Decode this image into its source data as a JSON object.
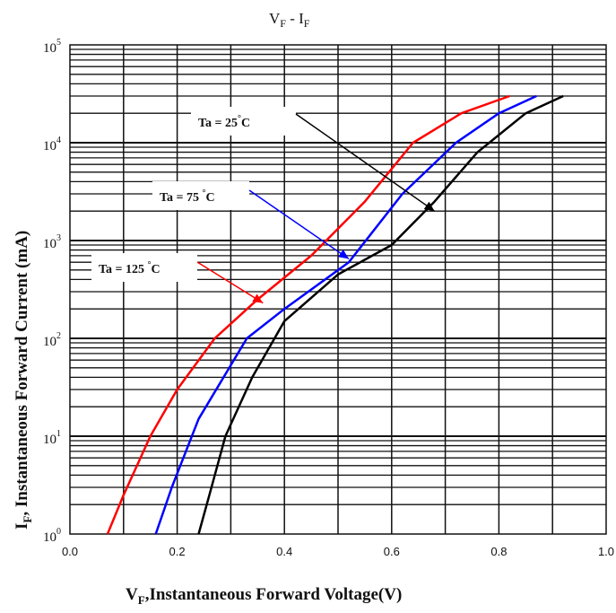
{
  "chart_data": {
    "type": "line",
    "title": "V",
    "title_parts": {
      "v": "V",
      "v_sub": "F",
      "dash": " - I",
      "i_sub": "F"
    },
    "xlabel": {
      "main": "V",
      "sub": "F",
      "rest": ",Instantaneous Forward Voltage(V)"
    },
    "ylabel": {
      "main": "I",
      "sub": "F",
      "rest": ", Instantaneous Forward Current (mA)"
    },
    "xlim": [
      0.0,
      1.0
    ],
    "ylim": [
      1,
      100000
    ],
    "yscale": "log",
    "grid": true,
    "x_ticks": [
      "0.0",
      "0.2",
      "0.4",
      "0.6",
      "0.8",
      "1.0"
    ],
    "y_ticks": [
      {
        "base": "10",
        "exp": "0"
      },
      {
        "base": "10",
        "exp": "1"
      },
      {
        "base": "10",
        "exp": "2"
      },
      {
        "base": "10",
        "exp": "3"
      },
      {
        "base": "10",
        "exp": "4"
      },
      {
        "base": "10",
        "exp": "5"
      }
    ],
    "series": [
      {
        "name": "Ta = 125°C",
        "color": "#ff0000",
        "x": [
          0.07,
          0.1,
          0.15,
          0.2,
          0.27,
          0.35,
          0.45,
          0.55,
          0.64,
          0.73,
          0.82
        ],
        "y": [
          1,
          2.5,
          10,
          30,
          100,
          250,
          700,
          2500,
          10000,
          20000,
          30000
        ]
      },
      {
        "name": "Ta = 75°C",
        "color": "#0000ff",
        "x": [
          0.16,
          0.19,
          0.24,
          0.33,
          0.4,
          0.52,
          0.62,
          0.72,
          0.8,
          0.87
        ],
        "y": [
          1,
          3,
          15,
          100,
          200,
          600,
          3000,
          10000,
          20000,
          30000
        ]
      },
      {
        "name": "Ta = 25°C",
        "color": "#000000",
        "x": [
          0.24,
          0.26,
          0.29,
          0.34,
          0.4,
          0.5,
          0.6,
          0.68,
          0.76,
          0.85,
          0.92
        ],
        "y": [
          1,
          2.5,
          10,
          40,
          150,
          450,
          900,
          2500,
          8000,
          20000,
          30000
        ]
      }
    ],
    "annotations": [
      {
        "text": "Ta = 25",
        "deg": "°",
        "unit": "C",
        "series": "Ta = 25°C",
        "arrow_to": [
          0.68,
          2000
        ]
      },
      {
        "text": "Ta = 75 ",
        "deg": "°",
        "unit": "C",
        "series": "Ta = 75°C",
        "arrow_to": [
          0.52,
          650
        ]
      },
      {
        "text": "Ta = 125 ",
        "deg": "°",
        "unit": "C",
        "series": "Ta = 125°C",
        "arrow_to": [
          0.36,
          230
        ]
      }
    ]
  }
}
